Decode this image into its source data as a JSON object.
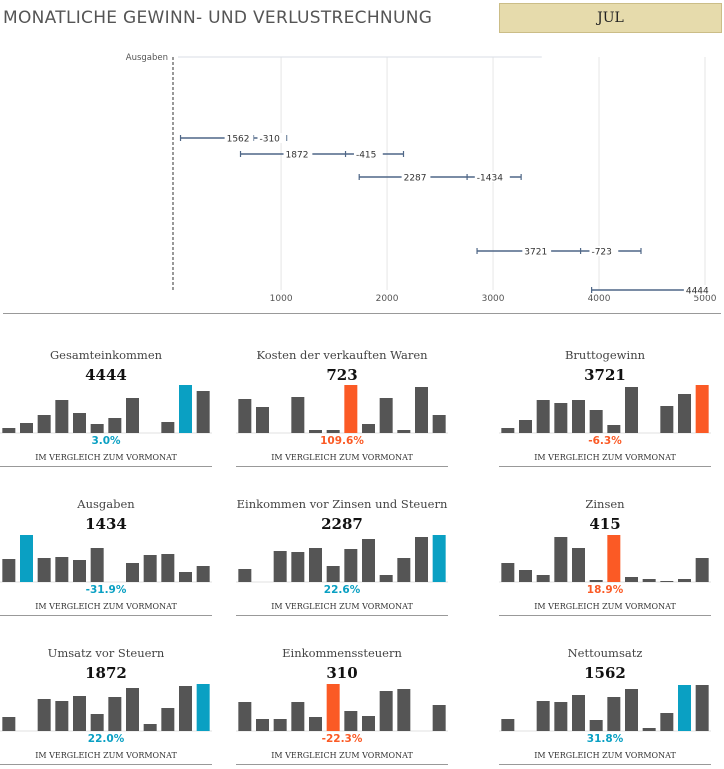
{
  "header": {
    "title": "MONATLICHE GEWINN- UND VERLUSTRECHNUNG",
    "month": "JUL"
  },
  "colors": {
    "bar": "#555555",
    "highlight_up": "#0aa0c3",
    "highlight_down": "#fb5a25",
    "axis": "#555555",
    "grid": "#e6e6e6",
    "wf_bar": "#4f6787",
    "wf_label_bg": "#ffffff"
  },
  "chart_data": [
    {
      "type": "bar",
      "name": "waterfall",
      "orientation": "horizontal",
      "xlim": [
        -20,
        5000
      ],
      "x_ticks": [
        1000,
        2000,
        3000,
        4000,
        5000
      ],
      "category_label": "Ausgaben",
      "rows": [
        {
          "low": 51,
          "high": 1052,
          "mid1": 616,
          "mid2": 740,
          "labels": [
            "1562",
            "-310"
          ]
        },
        {
          "low": 617,
          "high": 2155,
          "mid1": 1172,
          "mid2": 1608,
          "labels": [
            "1872",
            "-415"
          ]
        },
        {
          "low": 1737,
          "high": 3265,
          "mid1": 2286,
          "mid2": 2755,
          "labels": [
            "2287",
            "-1434"
          ]
        },
        {
          "low": 2849,
          "high": 4396,
          "mid1": 3425,
          "mid2": 3826,
          "labels": [
            "3721",
            "-723"
          ]
        },
        {
          "low": 3930,
          "high": 4936,
          "mid1": null,
          "mid2": 4823,
          "labels": [
            "4444"
          ]
        }
      ]
    },
    {
      "type": "bar",
      "name": "gesamteinkommen",
      "title": "Gesamteinkommen",
      "value": "4444",
      "change": "3.0%",
      "direction": "up",
      "highlight_index": 10,
      "values": [
        5,
        10,
        18,
        33,
        20,
        9,
        15,
        35,
        0,
        11,
        48,
        42
      ]
    },
    {
      "type": "bar",
      "name": "kosten",
      "title": "Kosten der verkauften Waren",
      "value": "723",
      "change": "109.6%",
      "direction": "down",
      "highlight_index": 6,
      "values": [
        34,
        26,
        0,
        36,
        3,
        3,
        48,
        9,
        35,
        3,
        46,
        18
      ]
    },
    {
      "type": "bar",
      "name": "bruttogewinn",
      "title": "Bruttogewinn",
      "value": "3721",
      "change": "-6.3%",
      "direction": "down",
      "highlight_index": 11,
      "values": [
        5,
        13,
        33,
        30,
        33,
        23,
        8,
        46,
        0,
        27,
        39,
        48
      ]
    },
    {
      "type": "bar",
      "name": "ausgaben",
      "title": "Ausgaben",
      "value": "1434",
      "change": "-31.9%",
      "direction": "up",
      "highlight_index": 1,
      "values": [
        23,
        47,
        24,
        25,
        22,
        34,
        0,
        19,
        27,
        28,
        10,
        16
      ]
    },
    {
      "type": "bar",
      "name": "ebit",
      "title": "Einkommen vor Zinsen und Steuern",
      "value": "2287",
      "change": "22.6%",
      "direction": "up",
      "highlight_index": 11,
      "values": [
        13,
        0,
        31,
        30,
        34,
        16,
        33,
        43,
        7,
        24,
        45,
        47
      ]
    },
    {
      "type": "bar",
      "name": "zinsen",
      "title": "Zinsen",
      "value": "415",
      "change": "18.9%",
      "direction": "down",
      "highlight_index": 6,
      "values": [
        19,
        12,
        7,
        45,
        34,
        2,
        47,
        5,
        3,
        1,
        3,
        24
      ]
    },
    {
      "type": "bar",
      "name": "umsatz-vor-steuern",
      "title": "Umsatz vor Steuern",
      "value": "1872",
      "change": "22.0%",
      "direction": "up",
      "highlight_index": 11,
      "values": [
        14,
        0,
        32,
        30,
        35,
        17,
        34,
        43,
        7,
        23,
        45,
        47
      ]
    },
    {
      "type": "bar",
      "name": "einkommenssteuern",
      "title": "Einkommenssteuern",
      "value": "310",
      "change": "-22.3%",
      "direction": "down",
      "highlight_index": 5,
      "values": [
        29,
        12,
        12,
        29,
        14,
        47,
        20,
        15,
        40,
        42,
        0,
        26
      ]
    },
    {
      "type": "bar",
      "name": "nettoumsatz",
      "title": "Nettoumsatz",
      "value": "1562",
      "change": "31.8%",
      "direction": "up",
      "highlight_index": 10,
      "values": [
        12,
        0,
        30,
        29,
        36,
        11,
        34,
        42,
        3,
        18,
        46,
        46
      ]
    }
  ],
  "labels": {
    "compare": "IM VERGLEICH ZUM VORMONAT"
  }
}
